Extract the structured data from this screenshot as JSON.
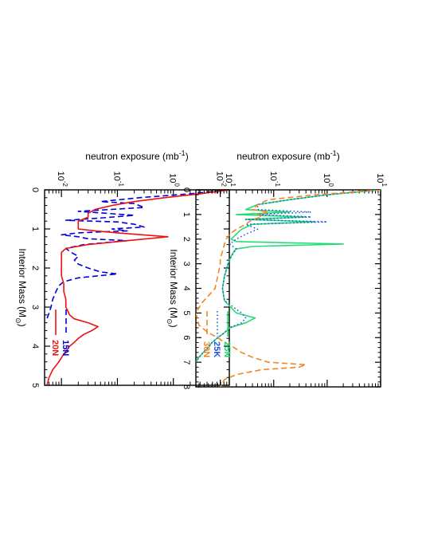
{
  "chart_data": [
    {
      "type": "line",
      "orientation": "rotated 90 degrees clockwise",
      "xlabel": "Interior Mass (M",
      "xlabel_sub": "⊙",
      "xlabel_end": ")",
      "ylabel": "neutron exposure (mb",
      "ylabel_sup": "-1",
      "ylabel_end": ")",
      "xlim": [
        0,
        5
      ],
      "ylim": [
        0.005,
        10
      ],
      "yscale": "log",
      "x_ticks": [
        "0",
        "1",
        "2",
        "3",
        "4",
        "5"
      ],
      "y_ticks": [
        {
          "base": "10",
          "exp": "-2",
          "value": 0.01
        },
        {
          "base": "10",
          "exp": "-1",
          "value": 0.1
        },
        {
          "base": "10",
          "exp": "0",
          "value": 1
        },
        {
          "base": "10",
          "exp": "1",
          "value": 10
        }
      ],
      "legend_position": "bottom-right (rotated)",
      "series": [
        {
          "name": "15N",
          "color": "#0000dd",
          "style": "dashed",
          "x": [
            0.0,
            0.1,
            0.2,
            0.3,
            0.35,
            0.45,
            0.55,
            0.65,
            0.72,
            0.78,
            0.82,
            0.88,
            0.95,
            1.0,
            1.05,
            1.1,
            1.15,
            1.2,
            1.25,
            1.3,
            1.4,
            1.5,
            1.6,
            1.7,
            1.8,
            1.9,
            2.0,
            2.1,
            2.15,
            2.25,
            2.35,
            2.45,
            2.6,
            2.8,
            3.0,
            3.15,
            3.3
          ],
          "y": [
            10,
            2.0,
            0.25,
            0.05,
            0.2,
            0.3,
            0.02,
            0.2,
            0.05,
            0.012,
            0.1,
            0.2,
            0.3,
            0.08,
            0.15,
            0.02,
            0.01,
            0.02,
            0.03,
            0.15,
            0.025,
            0.012,
            0.015,
            0.02,
            0.017,
            0.02,
            0.03,
            0.05,
            0.1,
            0.02,
            0.011,
            0.009,
            0.008,
            0.007,
            0.0065,
            0.006,
            0.0055
          ]
        },
        {
          "name": "20N",
          "color": "#ee1111",
          "style": "solid",
          "x": [
            0.0,
            0.1,
            0.2,
            0.3,
            0.4,
            0.5,
            0.6,
            0.7,
            0.8,
            0.9,
            1.0,
            1.05,
            1.1,
            1.2,
            1.3,
            1.4,
            1.5,
            1.6,
            1.8,
            2.0,
            2.2,
            2.4,
            2.6,
            2.8,
            3.0,
            3.1,
            3.2,
            3.3,
            3.4,
            3.5,
            3.6,
            3.7,
            3.8,
            3.9,
            4.0,
            4.2,
            4.4,
            4.6,
            4.8,
            5.0
          ],
          "y": [
            10,
            3.0,
            0.7,
            0.2,
            0.08,
            0.04,
            0.03,
            0.03,
            0.02,
            0.02,
            0.02,
            0.04,
            0.1,
            0.8,
            0.15,
            0.03,
            0.012,
            0.01,
            0.01,
            0.01,
            0.01,
            0.011,
            0.011,
            0.012,
            0.012,
            0.013,
            0.014,
            0.017,
            0.03,
            0.045,
            0.035,
            0.025,
            0.02,
            0.017,
            0.014,
            0.011,
            0.009,
            0.007,
            0.006,
            0.0055
          ]
        }
      ]
    },
    {
      "type": "line",
      "orientation": "rotated 90 degrees clockwise",
      "xlabel": "Interior Mass (M",
      "xlabel_sub": "⊙",
      "xlabel_end": ")",
      "ylabel": "neutron exposure (mb",
      "ylabel_sup": "-1",
      "ylabel_end": ")",
      "xlim": [
        0,
        8
      ],
      "ylim": [
        0.0035,
        10
      ],
      "yscale": "log",
      "x_ticks": [
        "0",
        "1",
        "2",
        "3",
        "4",
        "5",
        "6",
        "7",
        "8"
      ],
      "y_ticks": [
        {
          "base": "10",
          "exp": "-2",
          "value": 0.01
        },
        {
          "base": "10",
          "exp": "-1",
          "value": 0.1
        },
        {
          "base": "10",
          "exp": "0",
          "value": 1
        },
        {
          "base": "10",
          "exp": "1",
          "value": 10
        }
      ],
      "legend_position": "bottom-right (rotated)",
      "series": [
        {
          "name": "25N",
          "color": "#22dd77",
          "style": "solid",
          "x": [
            0.0,
            0.2,
            0.4,
            0.6,
            0.8,
            0.9,
            1.0,
            1.1,
            1.2,
            1.3,
            1.4,
            1.6,
            1.8,
            2.0,
            2.1,
            2.2,
            2.3,
            2.4,
            2.5,
            2.7,
            3.0,
            3.5,
            4.0,
            4.5,
            5.0,
            5.2,
            5.4,
            5.6,
            5.8,
            6.0,
            6.2,
            6.4,
            6.6,
            6.8,
            7.0
          ],
          "y": [
            10,
            1.0,
            0.2,
            0.05,
            0.03,
            0.2,
            0.02,
            0.4,
            0.03,
            0.6,
            0.04,
            0.025,
            0.02,
            0.016,
            0.02,
            2.0,
            0.04,
            0.02,
            0.018,
            0.016,
            0.014,
            0.012,
            0.011,
            0.012,
            0.02,
            0.045,
            0.03,
            0.015,
            0.012,
            0.009,
            0.007,
            0.006,
            0.0048,
            0.004,
            0.0035
          ]
        },
        {
          "name": "25K",
          "color": "#2255dd",
          "style": "dotted",
          "x": [
            0.0,
            0.2,
            0.4,
            0.6,
            0.8,
            0.9,
            1.0,
            1.1,
            1.2,
            1.3,
            1.4,
            1.6,
            1.8,
            2.0,
            2.2,
            2.4,
            2.7,
            3.0,
            3.5,
            4.0,
            4.5,
            5.0,
            5.2,
            5.4,
            5.6,
            5.8,
            6.0,
            6.2,
            6.4,
            6.6,
            6.8,
            7.0
          ],
          "y": [
            10,
            1.0,
            0.2,
            0.05,
            0.05,
            0.5,
            0.05,
            0.5,
            0.03,
            1.0,
            0.03,
            0.05,
            0.03,
            0.02,
            0.015,
            0.02,
            0.016,
            0.014,
            0.012,
            0.011,
            0.012,
            0.025,
            0.03,
            0.025,
            0.015,
            0.012,
            0.009,
            0.007,
            0.006,
            0.0048,
            0.004,
            0.0035
          ]
        },
        {
          "name": "30N",
          "color": "#ee8822",
          "style": "dashed",
          "x": [
            0.0,
            0.2,
            0.4,
            0.6,
            0.8,
            0.9,
            1.0,
            1.1,
            1.2,
            1.4,
            1.6,
            1.8,
            2.0,
            2.2,
            2.5,
            2.8,
            3.0,
            3.5,
            4.0,
            4.3,
            4.6,
            5.0,
            5.5,
            5.8,
            6.0,
            6.2,
            6.4,
            6.6,
            6.8,
            7.0,
            7.1,
            7.2,
            7.3,
            7.5,
            7.7,
            8.0
          ],
          "y": [
            10,
            0.6,
            0.08,
            0.05,
            0.04,
            0.08,
            0.05,
            0.06,
            0.04,
            0.03,
            0.02,
            0.015,
            0.013,
            0.012,
            0.011,
            0.01,
            0.01,
            0.009,
            0.008,
            0.006,
            0.0045,
            0.0035,
            0.004,
            0.006,
            0.009,
            0.012,
            0.018,
            0.025,
            0.04,
            0.08,
            0.4,
            0.3,
            0.06,
            0.02,
            0.012,
            0.01
          ]
        }
      ]
    }
  ]
}
